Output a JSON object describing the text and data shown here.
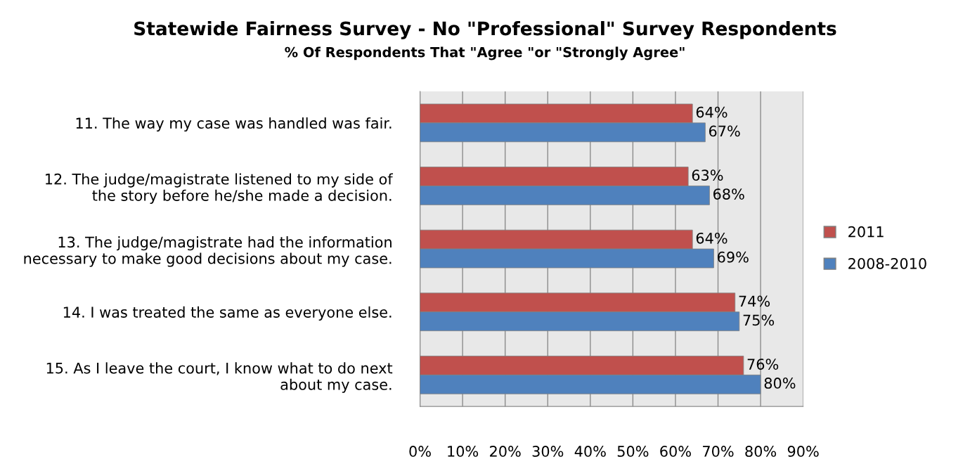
{
  "chart_data": {
    "type": "bar",
    "orientation": "horizontal",
    "title": "Statewide Fairness Survey - No \"Professional\" Survey Respondents",
    "subtitle": "% Of Respondents That \"Agree \"or \"Strongly Agree\"",
    "categories": [
      "11. The way my case was handled was fair.",
      "12. The judge/magistrate listened to my side of\nthe story before he/she made a decision.",
      "13. The judge/magistrate had the information\nnecessary to make good decisions about my case.",
      "14. I was treated the same as everyone else.",
      "15. As I leave the court, I know what to do next\nabout my case."
    ],
    "series": [
      {
        "name": "2011",
        "color": "#c0504d",
        "values": [
          64,
          63,
          64,
          74,
          76
        ],
        "value_labels": [
          "64%",
          "63%",
          "64%",
          "74%",
          "76%"
        ]
      },
      {
        "name": "2008-2010",
        "color": "#4f81bd",
        "values": [
          67,
          68,
          69,
          75,
          80
        ],
        "value_labels": [
          "67%",
          "68%",
          "69%",
          "75%",
          "80%"
        ]
      }
    ],
    "xlim": [
      0,
      90
    ],
    "xticks": [
      {
        "value": 0,
        "label": "0%"
      },
      {
        "value": 10,
        "label": "10%"
      },
      {
        "value": 20,
        "label": "20%"
      },
      {
        "value": 30,
        "label": "30%"
      },
      {
        "value": 40,
        "label": "40%"
      },
      {
        "value": 50,
        "label": "50%"
      },
      {
        "value": 60,
        "label": "60%"
      },
      {
        "value": 70,
        "label": "70%"
      },
      {
        "value": 80,
        "label": "80%"
      },
      {
        "value": 90,
        "label": "90%"
      }
    ],
    "grid": "x",
    "legend": "right"
  }
}
